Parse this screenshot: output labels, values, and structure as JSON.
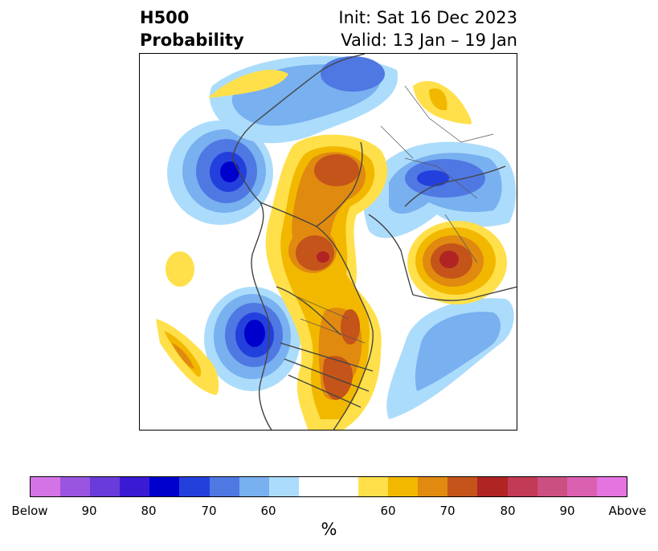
{
  "title": {
    "left_line1": "H500",
    "left_line2": "Probability",
    "right_line1": "Init: Sat 16 Dec 2023",
    "right_line2": "Valid: 13 Jan – 19 Jan"
  },
  "colorbar": {
    "label": "%",
    "segments": [
      {
        "color": "#d473e6"
      },
      {
        "color": "#9a55e0"
      },
      {
        "color": "#6a3bdb"
      },
      {
        "color": "#3a1ad3"
      },
      {
        "color": "#0000cc"
      },
      {
        "color": "#2340dd"
      },
      {
        "color": "#4f78e3"
      },
      {
        "color": "#78b0f0"
      },
      {
        "color": "#acdcfb"
      },
      {
        "color": "#ffffff",
        "wide": true
      },
      {
        "color": "#ffe04a"
      },
      {
        "color": "#f2b800"
      },
      {
        "color": "#e08a10"
      },
      {
        "color": "#c4541a"
      },
      {
        "color": "#b02424"
      },
      {
        "color": "#c23a55"
      },
      {
        "color": "#cc4f82"
      },
      {
        "color": "#dc60b0"
      },
      {
        "color": "#e374e0"
      }
    ],
    "tick_labels": [
      "Below",
      "90",
      "80",
      "70",
      "60",
      "60",
      "70",
      "80",
      "90",
      "Above"
    ]
  },
  "map": {
    "projection": "north-polar-stereographic",
    "palette": {
      "blue_60": "#acdcfb",
      "blue_65": "#78b0f0",
      "blue_70": "#4f78e3",
      "blue_75": "#2340dd",
      "blue_80": "#0000cc",
      "yellow_60": "#ffe04a",
      "yellow_65": "#f2b800",
      "orange_70": "#e08a10",
      "orange_75": "#c4541a",
      "red_80": "#b02424",
      "coast": "#444444"
    }
  }
}
